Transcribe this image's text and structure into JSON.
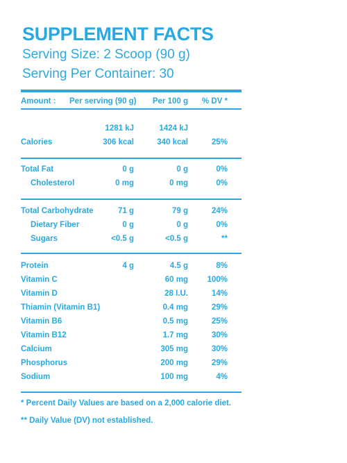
{
  "header": {
    "title": "SUPPLEMENT FACTS",
    "serving_size": "Serving Size: 2 Scoop (90 g)",
    "servings_per_container": "Serving Per Container: 30"
  },
  "columns": {
    "amount": "Amount :",
    "per_serving": "Per serving (90 g)",
    "per_100g": "Per 100 g",
    "dv": "% DV *"
  },
  "energy": {
    "kj_serving": "1281 kJ",
    "kj_100g": "1424 kJ"
  },
  "rows": [
    {
      "name": "Calories",
      "serving": "306 kcal",
      "per100": "340 kcal",
      "dv": "25%"
    },
    {
      "name": "Total Fat",
      "serving": "0 g",
      "per100": "0 g",
      "dv": "0%"
    },
    {
      "name": "Cholesterol",
      "serving": "0 mg",
      "per100": "0 mg",
      "dv": "0%"
    },
    {
      "name": "Total Carbohydrate",
      "serving": "71 g",
      "per100": "79 g",
      "dv": "24%"
    },
    {
      "name": "Dietary Fiber",
      "serving": "0 g",
      "per100": "0 g",
      "dv": "0%"
    },
    {
      "name": "Sugars",
      "serving": "<0.5 g",
      "per100": "<0.5 g",
      "dv": "**"
    },
    {
      "name": "Protein",
      "serving": "4 g",
      "per100": "4.5 g",
      "dv": "8%"
    },
    {
      "name": "Vitamin C",
      "serving": "",
      "per100": "60 mg",
      "dv": "100%"
    },
    {
      "name": "Vitamin D",
      "serving": "",
      "per100": "28 I.U.",
      "dv": "14%"
    },
    {
      "name": "Thiamin (Vitamin B1)",
      "serving": "",
      "per100": "0.4 mg",
      "dv": "29%"
    },
    {
      "name": "Vitamin B6",
      "serving": "",
      "per100": "0.5 mg",
      "dv": "25%"
    },
    {
      "name": "Vitamin B12",
      "serving": "",
      "per100": "1.7 mg",
      "dv": "30%"
    },
    {
      "name": "Calcium",
      "serving": "",
      "per100": "305 mg",
      "dv": "30%"
    },
    {
      "name": "Phosphorus",
      "serving": "",
      "per100": "200 mg",
      "dv": "29%"
    },
    {
      "name": "Sodium",
      "serving": "",
      "per100": "100 mg",
      "dv": "4%"
    }
  ],
  "footnotes": {
    "dv_note": "* Percent Daily Values are based on a 2,000 calorie diet.",
    "not_established": "** Daily Value (DV) not established."
  },
  "colors": {
    "accent": "#29a9e0",
    "background": "#ffffff"
  }
}
